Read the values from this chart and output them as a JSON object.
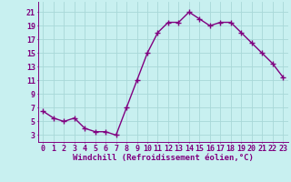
{
  "x": [
    0,
    1,
    2,
    3,
    4,
    5,
    6,
    7,
    8,
    9,
    10,
    11,
    12,
    13,
    14,
    15,
    16,
    17,
    18,
    19,
    20,
    21,
    22,
    23
  ],
  "y": [
    6.5,
    5.5,
    5.0,
    5.5,
    4.0,
    3.5,
    3.5,
    3.0,
    7.0,
    11.0,
    15.0,
    18.0,
    19.5,
    19.5,
    21.0,
    20.0,
    19.0,
    19.5,
    19.5,
    18.0,
    16.5,
    15.0,
    13.5,
    11.5
  ],
  "line_color": "#800080",
  "bg_color": "#c8f0f0",
  "grid_color": "#a8d8d8",
  "xlabel": "Windchill (Refroidissement éolien,°C)",
  "yticks": [
    3,
    5,
    7,
    9,
    11,
    13,
    15,
    17,
    19,
    21
  ],
  "xticks": [
    0,
    1,
    2,
    3,
    4,
    5,
    6,
    7,
    8,
    9,
    10,
    11,
    12,
    13,
    14,
    15,
    16,
    17,
    18,
    19,
    20,
    21,
    22,
    23
  ],
  "ylim": [
    2.0,
    22.5
  ],
  "xlim": [
    -0.5,
    23.5
  ],
  "marker": "+",
  "markersize": 4,
  "linewidth": 1.0,
  "label_fontsize": 6.5,
  "tick_fontsize": 6.0
}
